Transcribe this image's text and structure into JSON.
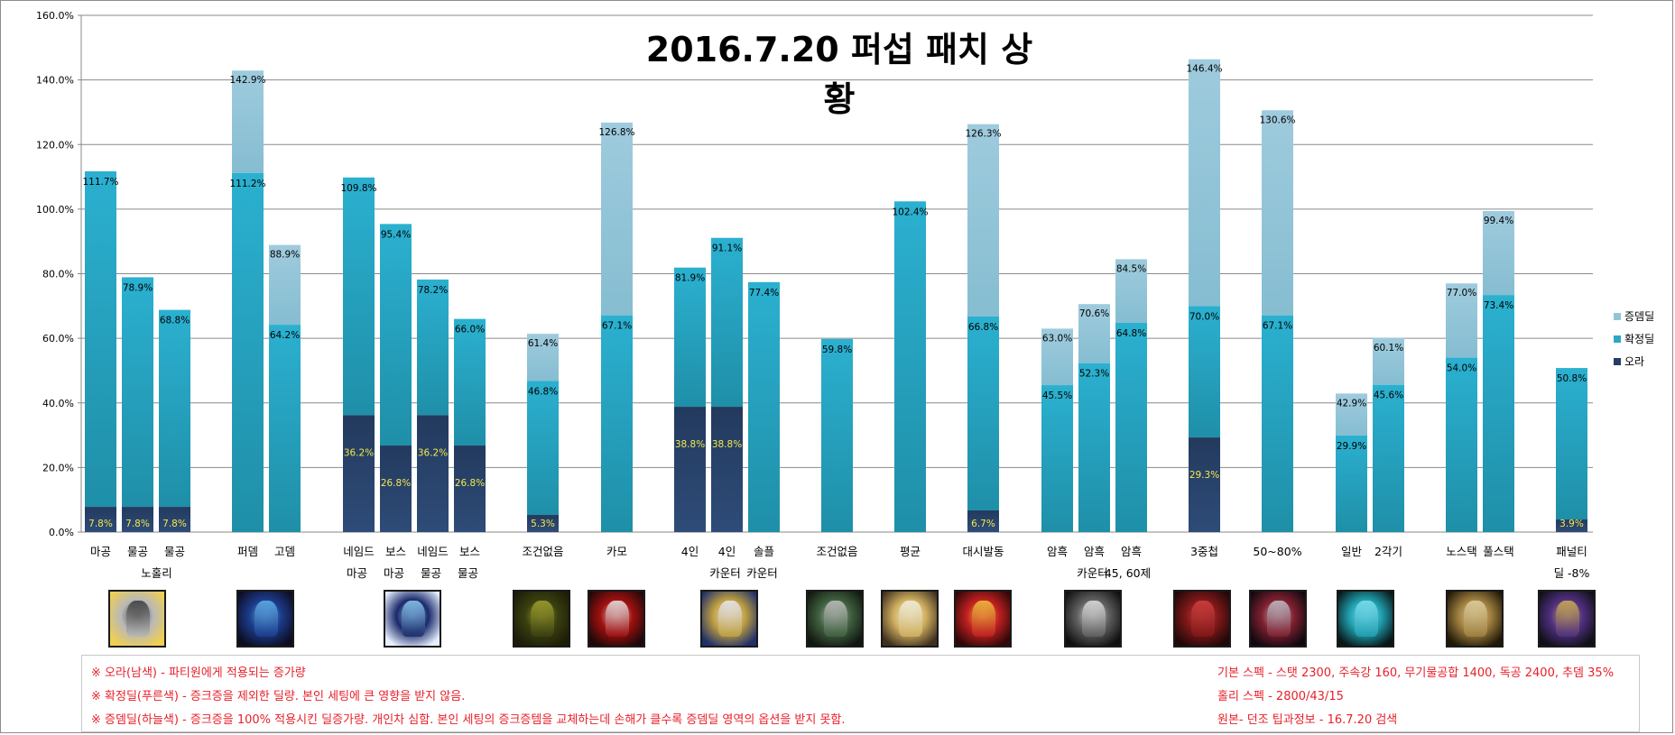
{
  "chart_data": {
    "type": "bar",
    "stacked": true,
    "title": "2016.7.20 퍼섭 패치 상황",
    "ylim": [
      0,
      160
    ],
    "y_ticks": [
      "0.0%",
      "20.0%",
      "40.0%",
      "60.0%",
      "80.0%",
      "100.0%",
      "120.0%",
      "140.0%",
      "160.0%"
    ],
    "grid": true,
    "legend_position": "right",
    "series": [
      {
        "name": "오라",
        "color": "#233d63"
      },
      {
        "name": "확정딜",
        "color": "#2ea7c4"
      },
      {
        "name": "증뎀딜",
        "color": "#92c5d7"
      }
    ],
    "bars": [
      {
        "label": "마공",
        "aura": 7.8,
        "confirmed": 111.7,
        "total": 111.7,
        "aura_label": "7.8%",
        "confirmed_label": "111.7%",
        "total_label": ""
      },
      {
        "label": "물공",
        "aura": 7.8,
        "confirmed": 78.9,
        "total": 78.9,
        "aura_label": "7.8%",
        "confirmed_label": "78.9%",
        "total_label": ""
      },
      {
        "label": "물공",
        "label2": "노홀리",
        "aura": 7.8,
        "confirmed": 68.8,
        "total": 68.8,
        "aura_label": "7.8%",
        "confirmed_label": "68.8%",
        "total_label": ""
      },
      {
        "label": "퍼뎀",
        "aura": 0,
        "confirmed": 111.2,
        "total": 142.9,
        "aura_label": "",
        "confirmed_label": "111.2%",
        "total_label": "142.9%"
      },
      {
        "label": "고뎀",
        "aura": 0,
        "confirmed": 64.2,
        "total": 88.9,
        "aura_label": "",
        "confirmed_label": "64.2%",
        "total_label": "88.9%"
      },
      {
        "label": "네임드",
        "label2": "마공",
        "aura": 36.2,
        "confirmed": 109.8,
        "total": 109.8,
        "aura_label": "36.2%",
        "confirmed_label": "109.8%",
        "total_label": ""
      },
      {
        "label": "보스",
        "label2": "마공",
        "aura": 26.8,
        "confirmed": 95.4,
        "total": 95.4,
        "aura_label": "26.8%",
        "confirmed_label": "95.4%",
        "total_label": ""
      },
      {
        "label": "네임드",
        "label2": "물공",
        "aura": 36.2,
        "confirmed": 78.2,
        "total": 78.2,
        "aura_label": "36.2%",
        "confirmed_label": "78.2%",
        "total_label": ""
      },
      {
        "label": "보스",
        "label2": "물공",
        "aura": 26.8,
        "confirmed": 66.0,
        "total": 66.0,
        "aura_label": "26.8%",
        "confirmed_label": "66.0%",
        "total_label": ""
      },
      {
        "label": "조건없음",
        "aura": 5.3,
        "confirmed": 46.8,
        "total": 61.4,
        "aura_label": "5.3%",
        "confirmed_label": "46.8%",
        "total_label": "61.4%"
      },
      {
        "label": "카모",
        "aura": 0,
        "confirmed": 67.1,
        "total": 126.8,
        "aura_label": "",
        "confirmed_label": "67.1%",
        "total_label": "126.8%"
      },
      {
        "label": "4인",
        "aura": 38.8,
        "confirmed": 81.9,
        "total": 81.9,
        "aura_label": "38.8%",
        "confirmed_label": "81.9%",
        "total_label": ""
      },
      {
        "label": "4인",
        "label2": "카운터",
        "aura": 38.8,
        "confirmed": 91.1,
        "total": 91.1,
        "aura_label": "38.8%",
        "confirmed_label": "91.1%",
        "total_label": ""
      },
      {
        "label": "솔플",
        "label2": "카운터",
        "aura": 0,
        "confirmed": 77.4,
        "total": 77.4,
        "aura_label": "",
        "confirmed_label": "77.4%",
        "total_label": ""
      },
      {
        "label": "조건없음",
        "aura": 0,
        "confirmed": 59.8,
        "total": 59.8,
        "aura_label": "",
        "confirmed_label": "59.8%",
        "total_label": ""
      },
      {
        "label": "평균",
        "aura": 0,
        "confirmed": 102.4,
        "total": 102.4,
        "aura_label": "",
        "confirmed_label": "102.4%",
        "total_label": ""
      },
      {
        "label": "대시발동",
        "aura": 6.7,
        "confirmed": 66.8,
        "total": 126.3,
        "aura_label": "6.7%",
        "confirmed_label": "66.8%",
        "total_label": "126.3%"
      },
      {
        "label": "암흑",
        "aura": 0,
        "confirmed": 45.5,
        "total": 63.0,
        "aura_label": "",
        "confirmed_label": "45.5%",
        "total_label": "63.0%"
      },
      {
        "label": "암흑",
        "label2": "카운터",
        "aura": 0,
        "confirmed": 52.3,
        "total": 70.6,
        "aura_label": "",
        "confirmed_label": "52.3%",
        "total_label": "70.6%"
      },
      {
        "label": "암흑",
        "label2": "45, 60제",
        "aura": 0,
        "confirmed": 64.8,
        "total": 84.5,
        "aura_label": "",
        "confirmed_label": "64.8%",
        "total_label": "84.5%"
      },
      {
        "label": "3중첩",
        "aura": 29.3,
        "confirmed": 70.0,
        "total": 146.4,
        "aura_label": "29.3%",
        "confirmed_label": "70.0%",
        "total_label": "146.4%"
      },
      {
        "label": "50~80%",
        "aura": 0,
        "confirmed": 67.1,
        "total": 130.6,
        "aura_label": "",
        "confirmed_label": "67.1%",
        "total_label": "130.6%"
      },
      {
        "label": "일반",
        "aura": 0,
        "confirmed": 29.9,
        "total": 42.9,
        "aura_label": "",
        "confirmed_label": "29.9%",
        "total_label": "42.9%"
      },
      {
        "label": "2각기",
        "aura": 0,
        "confirmed": 45.6,
        "total": 60.1,
        "aura_label": "",
        "confirmed_label": "45.6%",
        "total_label": "60.1%"
      },
      {
        "label": "노스택",
        "aura": 0,
        "confirmed": 54.0,
        "total": 77.0,
        "aura_label": "",
        "confirmed_label": "54.0%",
        "total_label": "77.0%"
      },
      {
        "label": "풀스택",
        "aura": 0,
        "confirmed": 73.4,
        "total": 99.4,
        "aura_label": "",
        "confirmed_label": "73.4%",
        "total_label": "99.4%"
      },
      {
        "label": "패널티",
        "label2": "딜 -8%",
        "aura": 3.9,
        "confirmed": 50.8,
        "total": 50.8,
        "aura_label": "3.9%",
        "confirmed_label": "50.8%",
        "total_label": ""
      }
    ]
  },
  "icons": [
    {
      "name": "class-icon-1",
      "colors": [
        "#b8b8b8",
        "#3a3a3a",
        "#f0d050"
      ]
    },
    {
      "name": "class-icon-2",
      "colors": [
        "#1c3c8c",
        "#60b0e8",
        "#0c0c20"
      ]
    },
    {
      "name": "class-icon-3",
      "colors": [
        "#1a2a6a",
        "#8cc8f0",
        "#e8f0ff"
      ]
    },
    {
      "name": "class-icon-4",
      "colors": [
        "#3a4010",
        "#a0a030",
        "#1c1c08"
      ]
    },
    {
      "name": "class-icon-5",
      "colors": [
        "#a01010",
        "#e8e8e8",
        "#200808"
      ]
    },
    {
      "name": "class-icon-6",
      "colors": [
        "#c0a040",
        "#e8e8f8",
        "#20306a"
      ]
    },
    {
      "name": "class-icon-7",
      "colors": [
        "#406040",
        "#c0c0c0",
        "#101810"
      ]
    },
    {
      "name": "class-icon-8",
      "colors": [
        "#d0b060",
        "#f0f0e0",
        "#403020"
      ]
    },
    {
      "name": "class-icon-9",
      "colors": [
        "#c02020",
        "#f0c040",
        "#300808"
      ]
    },
    {
      "name": "class-icon-10",
      "colors": [
        "#606060",
        "#e0e0e0",
        "#101010"
      ]
    },
    {
      "name": "class-icon-11",
      "colors": [
        "#801818",
        "#d04040",
        "#200808"
      ]
    },
    {
      "name": "class-icon-12",
      "colors": [
        "#802030",
        "#c0c0c8",
        "#100810"
      ]
    },
    {
      "name": "class-icon-13",
      "colors": [
        "#20a0b0",
        "#80e0f0",
        "#081818"
      ]
    },
    {
      "name": "class-icon-14",
      "colors": [
        "#a08040",
        "#e0d0a0",
        "#201808"
      ]
    },
    {
      "name": "class-icon-15",
      "colors": [
        "#503080",
        "#d0b050",
        "#101018"
      ]
    }
  ],
  "notes": {
    "aura": "※ 오라(남색) - 파티원에게 적용되는 증가량",
    "confirmed": "※ 확정딜(푸른색) - 증크증을 제외한 딜량. 본인 세팅에 큰 영향을 받지 않음.",
    "increase": "※ 증뎀딜(하늘색) - 증크증을 100% 적용시킨 딜증가량. 개인차 심함. 본인 세팅의 증크증템을 교체하는데 손해가 클수록 증뎀딜 영역의 옵션을 받지 못함.",
    "spec": "기본 스펙 - 스탯 2300, 주속강 160,  무기물공합 1400, 독공 2400, 추뎀 35%",
    "holy": "홀리 스펙 - 2800/43/15",
    "source": "원본- 던조 팁과정보 - 16.7.20 검색"
  }
}
